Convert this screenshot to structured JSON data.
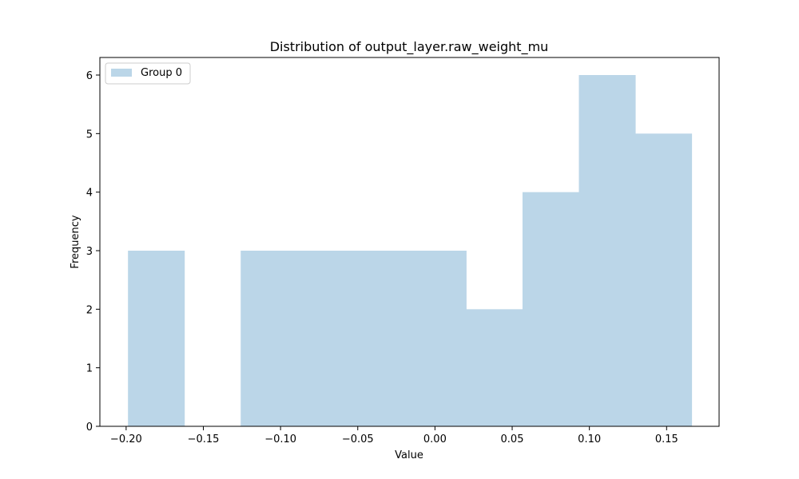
{
  "chart_data": {
    "type": "bar",
    "title": "Distribution of output_layer.raw_weight_mu",
    "xlabel": "Value",
    "ylabel": "Frequency",
    "xlim": [
      -0.217,
      0.184
    ],
    "ylim": [
      0,
      6.3
    ],
    "grid": false,
    "legend_position": "top-left",
    "x_ticks": [
      -0.2,
      -0.15,
      -0.1,
      -0.05,
      0.0,
      0.05,
      0.1,
      0.15
    ],
    "x_tick_labels": [
      "−0.20",
      "−0.15",
      "−0.10",
      "−0.05",
      "0.00",
      "0.05",
      "0.10",
      "0.15"
    ],
    "y_ticks": [
      0,
      1,
      2,
      3,
      4,
      5,
      6
    ],
    "y_tick_labels": [
      "0",
      "1",
      "2",
      "3",
      "4",
      "5",
      "6"
    ],
    "series": [
      {
        "name": "Group 0",
        "color": "#bbd6e8",
        "bin_edges": [
          -0.1988,
          -0.1623,
          -0.1258,
          -0.0893,
          -0.0528,
          -0.0163,
          0.0202,
          0.0567,
          0.0932,
          0.1297,
          0.1662
        ],
        "counts": [
          3,
          0,
          3,
          3,
          3,
          3,
          2,
          4,
          6,
          5
        ]
      }
    ]
  }
}
